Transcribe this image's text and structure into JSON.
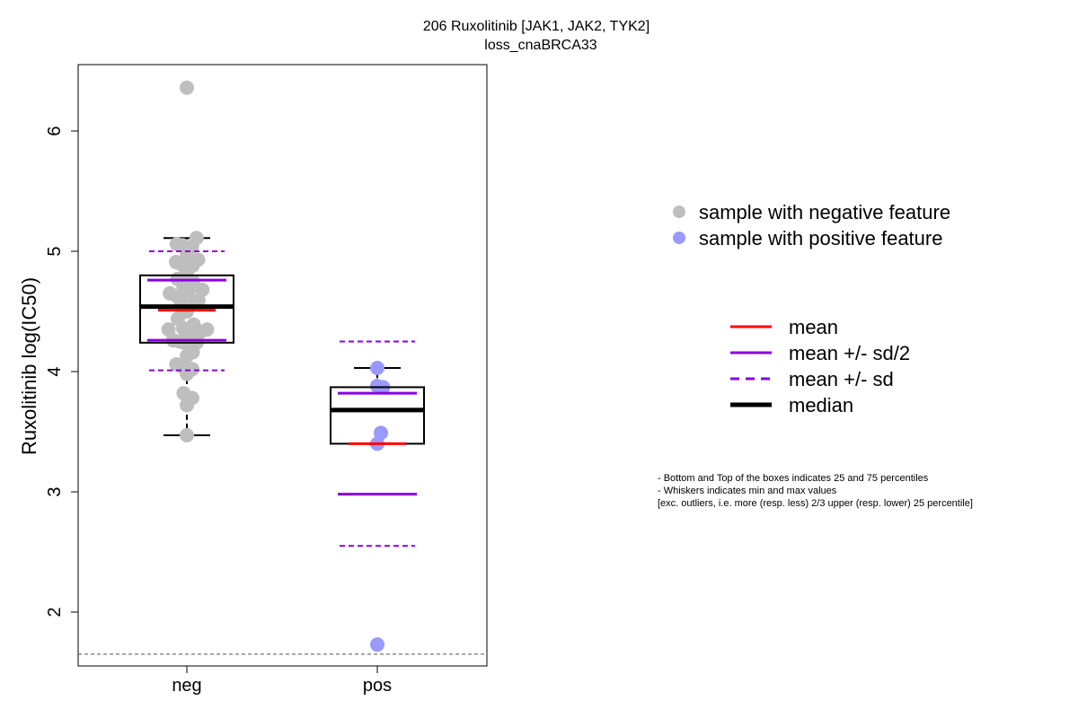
{
  "title": "206 Ruxolitinib [JAK1, JAK2, TYK2]",
  "subtitle": "loss_cnaBRCA33",
  "colors": {
    "neg_point": "#bebebe",
    "pos_point": "#9999ff",
    "mean": "#ff0000",
    "sd": "#8a00e0",
    "median": "#000000",
    "threshold": "#555555"
  },
  "legend": {
    "points": [
      {
        "label": "sample with negative feature",
        "color": "#bebebe"
      },
      {
        "label": "sample with positive feature",
        "color": "#9999ff"
      }
    ],
    "lines": [
      {
        "label": "mean",
        "color": "#ff0000",
        "style": "solid",
        "weight": "normal"
      },
      {
        "label": "mean +/- sd/2",
        "color": "#8a00e0",
        "style": "solid",
        "weight": "normal"
      },
      {
        "label": "mean +/- sd",
        "color": "#8a00e0",
        "style": "dashed",
        "weight": "normal"
      },
      {
        "label": "median",
        "color": "#000000",
        "style": "solid",
        "weight": "bold"
      }
    ]
  },
  "notes": [
    "- Bottom and Top of the boxes indicates 25 and 75 percentiles",
    "- Whiskers indicates min and max values",
    "[exc. outliers, i.e. more (resp. less) 2/3 upper (resp. lower) 25 percentile]"
  ],
  "chart_data": {
    "type": "box",
    "title": "206 Ruxolitinib [JAK1, JAK2, TYK2]",
    "subtitle": "loss_cnaBRCA33",
    "ylabel": "Ruxolitinib log(IC50)",
    "xlabel": "",
    "categories": [
      "neg",
      "pos"
    ],
    "ylim": [
      1.55,
      6.55
    ],
    "yticks": [
      2,
      3,
      4,
      5,
      6
    ],
    "threshold_line": 1.65,
    "grid": false,
    "legend_position": "right",
    "groups": [
      {
        "name": "neg",
        "whisker_min": 3.47,
        "q1": 4.24,
        "median": 4.54,
        "q3": 4.8,
        "whisker_max": 5.11,
        "mean": 4.51,
        "mean_minus_half_sd": 4.26,
        "mean_plus_half_sd": 4.76,
        "mean_minus_sd": 4.01,
        "mean_plus_sd": 5.0,
        "points": [
          {
            "y": 6.36,
            "jitter": 0.0
          },
          {
            "y": 5.11,
            "jitter": 0.27
          },
          {
            "y": 5.06,
            "jitter": -0.28
          },
          {
            "y": 5.05,
            "jitter": -0.12
          },
          {
            "y": 5.04,
            "jitter": 0.14
          },
          {
            "y": 4.96,
            "jitter": 0.0
          },
          {
            "y": 4.93,
            "jitter": 0.31
          },
          {
            "y": 4.91,
            "jitter": -0.3
          },
          {
            "y": 4.89,
            "jitter": -0.14
          },
          {
            "y": 4.88,
            "jitter": 0.16
          },
          {
            "y": 4.83,
            "jitter": 0.0
          },
          {
            "y": 4.77,
            "jitter": -0.26
          },
          {
            "y": 4.75,
            "jitter": 0.17
          },
          {
            "y": 4.72,
            "jitter": -0.1
          },
          {
            "y": 4.68,
            "jitter": 0.43
          },
          {
            "y": 4.67,
            "jitter": 0.04
          },
          {
            "y": 4.65,
            "jitter": -0.47
          },
          {
            "y": 4.63,
            "jitter": -0.29
          },
          {
            "y": 4.59,
            "jitter": 0.32
          },
          {
            "y": 4.57,
            "jitter": -0.15
          },
          {
            "y": 4.56,
            "jitter": 0.15
          },
          {
            "y": 4.5,
            "jitter": 0.0
          },
          {
            "y": 4.44,
            "jitter": -0.25
          },
          {
            "y": 4.39,
            "jitter": 0.19
          },
          {
            "y": 4.36,
            "jitter": -0.1
          },
          {
            "y": 4.35,
            "jitter": -0.51
          },
          {
            "y": 4.35,
            "jitter": 0.56
          },
          {
            "y": 4.33,
            "jitter": 0.39
          },
          {
            "y": 4.32,
            "jitter": 0.05
          },
          {
            "y": 4.26,
            "jitter": -0.38
          },
          {
            "y": 4.25,
            "jitter": -0.2
          },
          {
            "y": 4.24,
            "jitter": 0.27
          },
          {
            "y": 4.24,
            "jitter": -0.07
          },
          {
            "y": 4.23,
            "jitter": 0.1
          },
          {
            "y": 4.16,
            "jitter": 0.16
          },
          {
            "y": 4.13,
            "jitter": 0.0
          },
          {
            "y": 4.06,
            "jitter": -0.29
          },
          {
            "y": 4.04,
            "jitter": -0.12
          },
          {
            "y": 4.02,
            "jitter": 0.15
          },
          {
            "y": 3.98,
            "jitter": 0.0
          },
          {
            "y": 3.82,
            "jitter": -0.09
          },
          {
            "y": 3.78,
            "jitter": 0.15
          },
          {
            "y": 3.72,
            "jitter": 0.0
          },
          {
            "y": 3.47,
            "jitter": 0.0
          }
        ]
      },
      {
        "name": "pos",
        "whisker_min": 3.4,
        "q1": 3.4,
        "median": 3.68,
        "q3": 3.87,
        "whisker_max": 4.03,
        "mean": 3.4,
        "mean_minus_half_sd": 2.98,
        "mean_plus_half_sd": 3.82,
        "mean_minus_sd": 2.55,
        "mean_plus_sd": 4.25,
        "points": [
          {
            "y": 4.03,
            "jitter": 0.0
          },
          {
            "y": 3.88,
            "jitter": 0.0
          },
          {
            "y": 3.87,
            "jitter": 0.16
          },
          {
            "y": 3.49,
            "jitter": 0.1
          },
          {
            "y": 3.4,
            "jitter": 0.0
          },
          {
            "y": 1.73,
            "jitter": 0.0
          }
        ]
      }
    ]
  }
}
